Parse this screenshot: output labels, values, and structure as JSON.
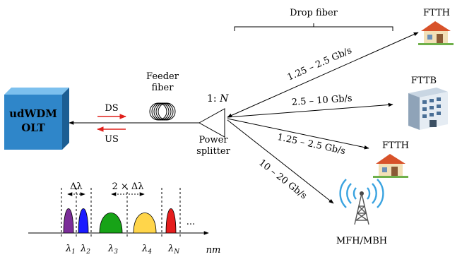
{
  "olt": {
    "line1": "udWDM",
    "line2": "OLT"
  },
  "links": {
    "ds": "DS",
    "us": "US",
    "feeder_line1": "Feeder",
    "feeder_line2": "fiber",
    "drop_fiber": "Drop fiber"
  },
  "splitter": {
    "ratio_prefix": "1: ",
    "ratio_n": "N",
    "label_line1": "Power",
    "label_line2": "splitter"
  },
  "branches": [
    {
      "rate": "1.25 – 2.5 Gb/s",
      "dest": "FTTH",
      "icon": "house-icon"
    },
    {
      "rate": "2.5 – 10 Gb/s",
      "dest": "FTTB",
      "icon": "building-icon"
    },
    {
      "rate": "1.25 – 2.5 Gb/s",
      "dest": "FTTH",
      "icon": "house-icon"
    },
    {
      "rate": "10 – 20 Gb/s",
      "dest": "MFH/MBH",
      "icon": "antenna-tower-icon"
    }
  ],
  "spectrum": {
    "delta": "Δλ",
    "double_delta": "2 × Δλ",
    "ellipsis": "...",
    "axis_unit": "nm",
    "channels": [
      {
        "sym": "λ",
        "sub": "1",
        "color": "#7b2d99"
      },
      {
        "sym": "λ",
        "sub": "2",
        "color": "#1a1aff"
      },
      {
        "sym": "λ",
        "sub": "3",
        "color": "#17a317"
      },
      {
        "sym": "λ",
        "sub": "4",
        "color": "#ffd54a"
      },
      {
        "sym": "λ",
        "sub": "N",
        "color": "#e51d1d"
      }
    ]
  },
  "colors": {
    "olt_front": "#2f86c9",
    "olt_top": "#7cc0ee",
    "olt_side": "#1c5e93",
    "arrow_red": "#e0201b"
  }
}
